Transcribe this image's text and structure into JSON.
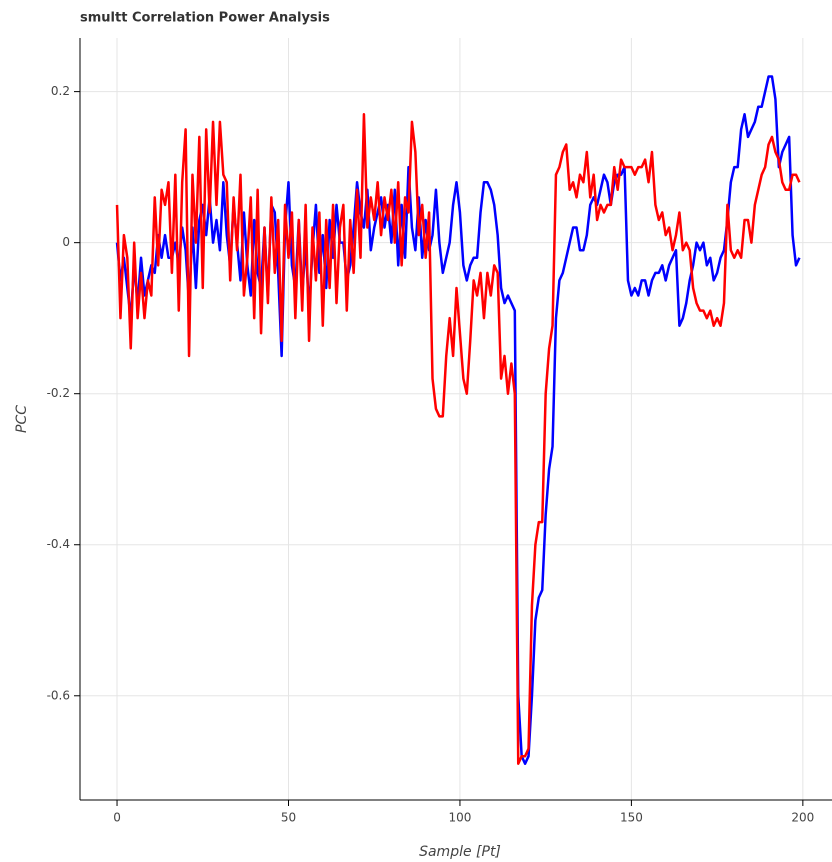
{
  "chart_data": {
    "type": "line",
    "title": "smultt Correlation Power Analysis",
    "x_label": "Sample [Pt]",
    "y_label": "PCC",
    "x": [
      0,
      1,
      2,
      3,
      4,
      5,
      6,
      7,
      8,
      9,
      10,
      11,
      12,
      13,
      14,
      15,
      16,
      17,
      18,
      19,
      20,
      21,
      22,
      23,
      24,
      25,
      26,
      27,
      28,
      29,
      30,
      31,
      32,
      33,
      34,
      35,
      36,
      37,
      38,
      39,
      40,
      41,
      42,
      43,
      44,
      45,
      46,
      47,
      48,
      49,
      50,
      51,
      52,
      53,
      54,
      55,
      56,
      57,
      58,
      59,
      60,
      61,
      62,
      63,
      64,
      65,
      66,
      67,
      68,
      69,
      70,
      71,
      72,
      73,
      74,
      75,
      76,
      77,
      78,
      79,
      80,
      81,
      82,
      83,
      84,
      85,
      86,
      87,
      88,
      89,
      90,
      91,
      92,
      93,
      94,
      95,
      96,
      97,
      98,
      99,
      100,
      101,
      102,
      103,
      104,
      105,
      106,
      107,
      108,
      109,
      110,
      111,
      112,
      113,
      114,
      115,
      116,
      117,
      118,
      119,
      120,
      121,
      122,
      123,
      124,
      125,
      126,
      127,
      128,
      129,
      130,
      131,
      132,
      133,
      134,
      135,
      136,
      137,
      138,
      139,
      140,
      141,
      142,
      143,
      144,
      145,
      146,
      147,
      148,
      149,
      150,
      151,
      152,
      153,
      154,
      155,
      156,
      157,
      158,
      159,
      160,
      161,
      162,
      163,
      164,
      165,
      166,
      167,
      168,
      169,
      170,
      171,
      172,
      173,
      174,
      175,
      176,
      177,
      178,
      179,
      180,
      181,
      182,
      183,
      184,
      185,
      186,
      187,
      188,
      189,
      190,
      191,
      192,
      193,
      194,
      195,
      196,
      197,
      198,
      199
    ],
    "series": [
      {
        "color": "#0000ff",
        "values": [
          0.0,
          -0.05,
          -0.02,
          -0.06,
          -0.1,
          -0.03,
          -0.08,
          -0.02,
          -0.07,
          -0.05,
          -0.03,
          -0.04,
          0.01,
          -0.02,
          0.01,
          -0.02,
          -0.02,
          0.0,
          -0.03,
          0.02,
          -0.01,
          -0.08,
          0.02,
          -0.06,
          0.03,
          0.05,
          0.01,
          0.06,
          0.0,
          0.03,
          -0.01,
          0.08,
          0.01,
          -0.03,
          0.05,
          0.0,
          -0.05,
          0.04,
          -0.03,
          -0.07,
          0.03,
          -0.04,
          -0.06,
          0.02,
          -0.07,
          0.05,
          0.04,
          -0.04,
          -0.15,
          0.02,
          0.08,
          -0.03,
          -0.06,
          0.03,
          -0.07,
          0.0,
          -0.09,
          -0.01,
          0.05,
          -0.04,
          0.01,
          -0.06,
          0.03,
          -0.02,
          0.05,
          0.0,
          0.0,
          -0.05,
          -0.03,
          0.02,
          0.08,
          0.04,
          0.02,
          0.07,
          -0.01,
          0.02,
          0.04,
          0.06,
          0.02,
          0.05,
          0.0,
          0.07,
          -0.03,
          0.05,
          -0.02,
          0.1,
          0.02,
          -0.01,
          0.06,
          -0.02,
          0.03,
          -0.01,
          0.01,
          0.07,
          0.0,
          -0.04,
          -0.02,
          0.0,
          0.05,
          0.08,
          0.04,
          -0.03,
          -0.05,
          -0.03,
          -0.02,
          -0.02,
          0.04,
          0.08,
          0.08,
          0.07,
          0.05,
          0.01,
          -0.06,
          -0.08,
          -0.07,
          -0.08,
          -0.09,
          -0.6,
          -0.68,
          -0.69,
          -0.68,
          -0.6,
          -0.5,
          -0.47,
          -0.46,
          -0.36,
          -0.3,
          -0.27,
          -0.1,
          -0.05,
          -0.04,
          -0.02,
          0.0,
          0.02,
          0.02,
          -0.01,
          -0.01,
          0.01,
          0.05,
          0.06,
          0.05,
          0.07,
          0.09,
          0.08,
          0.05,
          0.08,
          0.09,
          0.09,
          0.1,
          -0.05,
          -0.07,
          -0.06,
          -0.07,
          -0.05,
          -0.05,
          -0.07,
          -0.05,
          -0.04,
          -0.04,
          -0.03,
          -0.05,
          -0.03,
          -0.02,
          -0.01,
          -0.11,
          -0.1,
          -0.08,
          -0.05,
          -0.03,
          0.0,
          -0.01,
          0.0,
          -0.03,
          -0.02,
          -0.05,
          -0.04,
          -0.02,
          -0.01,
          0.03,
          0.08,
          0.1,
          0.1,
          0.15,
          0.17,
          0.14,
          0.15,
          0.16,
          0.18,
          0.18,
          0.2,
          0.22,
          0.22,
          0.19,
          0.1,
          0.12,
          0.13,
          0.14,
          0.01,
          -0.03,
          -0.02
        ]
      },
      {
        "color": "#ff0000",
        "values": [
          0.05,
          -0.1,
          0.01,
          -0.02,
          -0.14,
          0.0,
          -0.1,
          -0.04,
          -0.1,
          -0.05,
          -0.07,
          0.06,
          -0.03,
          0.07,
          0.05,
          0.08,
          -0.04,
          0.09,
          -0.09,
          0.08,
          0.15,
          -0.15,
          0.09,
          0.0,
          0.14,
          -0.06,
          0.15,
          0.04,
          0.16,
          0.05,
          0.16,
          0.09,
          0.08,
          -0.05,
          0.06,
          -0.01,
          0.09,
          -0.07,
          -0.02,
          0.06,
          -0.1,
          0.07,
          -0.12,
          0.02,
          -0.08,
          0.06,
          -0.04,
          0.03,
          -0.13,
          0.05,
          -0.02,
          0.04,
          -0.1,
          0.03,
          -0.09,
          0.05,
          -0.13,
          0.02,
          -0.05,
          0.04,
          -0.11,
          0.03,
          -0.06,
          0.05,
          -0.08,
          0.02,
          0.05,
          -0.09,
          0.03,
          -0.04,
          0.07,
          -0.02,
          0.17,
          0.02,
          0.06,
          0.03,
          0.08,
          0.01,
          0.06,
          0.03,
          0.07,
          0.0,
          0.08,
          -0.03,
          0.06,
          0.04,
          0.16,
          0.12,
          0.01,
          0.05,
          -0.02,
          0.04,
          -0.18,
          -0.22,
          -0.23,
          -0.23,
          -0.15,
          -0.1,
          -0.15,
          -0.06,
          -0.12,
          -0.18,
          -0.2,
          -0.13,
          -0.05,
          -0.07,
          -0.04,
          -0.1,
          -0.04,
          -0.07,
          -0.03,
          -0.04,
          -0.18,
          -0.15,
          -0.2,
          -0.16,
          -0.2,
          -0.69,
          -0.68,
          -0.68,
          -0.67,
          -0.48,
          -0.4,
          -0.37,
          -0.37,
          -0.2,
          -0.14,
          -0.11,
          0.09,
          0.1,
          0.12,
          0.13,
          0.07,
          0.08,
          0.06,
          0.09,
          0.08,
          0.12,
          0.06,
          0.09,
          0.03,
          0.05,
          0.04,
          0.05,
          0.05,
          0.1,
          0.07,
          0.11,
          0.1,
          0.1,
          0.1,
          0.09,
          0.1,
          0.1,
          0.11,
          0.08,
          0.12,
          0.05,
          0.03,
          0.04,
          0.01,
          0.02,
          -0.01,
          0.01,
          0.04,
          -0.01,
          0.0,
          -0.01,
          -0.06,
          -0.08,
          -0.09,
          -0.09,
          -0.1,
          -0.09,
          -0.11,
          -0.1,
          -0.11,
          -0.08,
          0.05,
          -0.01,
          -0.02,
          -0.01,
          -0.02,
          0.03,
          0.03,
          0.0,
          0.05,
          0.07,
          0.09,
          0.1,
          0.13,
          0.14,
          0.12,
          0.11,
          0.08,
          0.07,
          0.07,
          0.09,
          0.09,
          0.08
        ]
      }
    ],
    "xlim": [
      -10.8,
      208.5
    ],
    "ylim": [
      -0.738,
      0.271
    ],
    "xticks": [
      0,
      50,
      100,
      150,
      200
    ],
    "yticks": [
      -0.6,
      -0.4,
      -0.2,
      0,
      0.2
    ],
    "grid": true
  }
}
